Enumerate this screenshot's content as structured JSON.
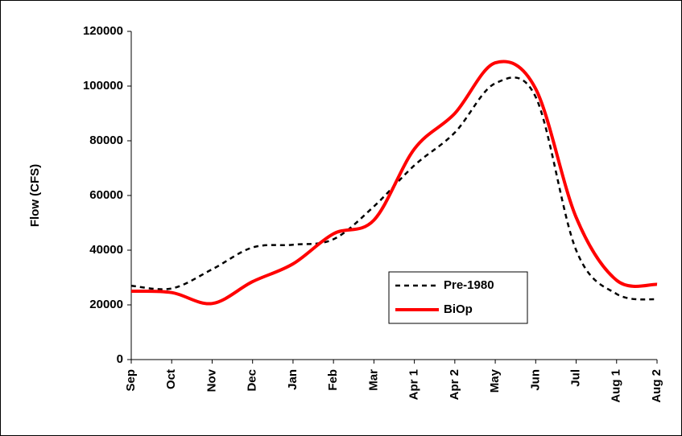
{
  "chart_data": {
    "type": "line",
    "y_label": "Flow (CFS)",
    "categories": [
      "Sep",
      "Oct",
      "Nov",
      "Dec",
      "Jan",
      "Feb",
      "Mar",
      "Apr 1",
      "Apr 2",
      "May",
      "Jun",
      "Jul",
      "Aug 1",
      "Aug 2"
    ],
    "series": [
      {
        "name": "Pre-1980",
        "color": "#000000",
        "style": "dashed",
        "width": 2.5,
        "values": [
          27000,
          26000,
          33000,
          41000,
          42000,
          44000,
          56000,
          71000,
          83000,
          101000,
          96000,
          40000,
          24000,
          22000
        ]
      },
      {
        "name": "BiOp",
        "color": "#ff0000",
        "style": "solid",
        "width": 4,
        "values": [
          25000,
          24500,
          20500,
          28500,
          35000,
          46000,
          51000,
          77000,
          90000,
          108500,
          99000,
          52000,
          29000,
          27500
        ]
      }
    ],
    "ylim": [
      0,
      120000
    ],
    "yticks": [
      0,
      20000,
      40000,
      60000,
      80000,
      100000,
      120000
    ],
    "grid": false,
    "legend": "lower right",
    "smooth": true
  }
}
